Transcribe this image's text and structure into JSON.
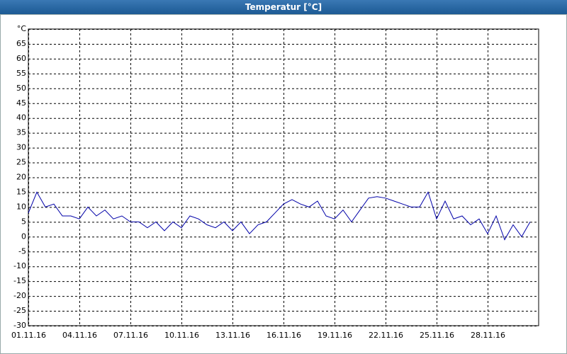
{
  "chart_data": {
    "type": "line",
    "title": "Temperatur [°C]",
    "x": [
      "2016-11-01T00:00",
      "2016-11-01T12:00",
      "2016-11-02T00:00",
      "2016-11-02T12:00",
      "2016-11-03T00:00",
      "2016-11-03T12:00",
      "2016-11-04T00:00",
      "2016-11-04T12:00",
      "2016-11-05T00:00",
      "2016-11-05T12:00",
      "2016-11-06T00:00",
      "2016-11-06T12:00",
      "2016-11-07T00:00",
      "2016-11-07T12:00",
      "2016-11-08T00:00",
      "2016-11-08T12:00",
      "2016-11-09T00:00",
      "2016-11-09T12:00",
      "2016-11-10T00:00",
      "2016-11-10T12:00",
      "2016-11-11T00:00",
      "2016-11-11T12:00",
      "2016-11-12T00:00",
      "2016-11-12T12:00",
      "2016-11-13T00:00",
      "2016-11-13T12:00",
      "2016-11-14T00:00",
      "2016-11-14T12:00",
      "2016-11-15T00:00",
      "2016-11-15T12:00",
      "2016-11-16T00:00",
      "2016-11-16T12:00",
      "2016-11-17T00:00",
      "2016-11-17T12:00",
      "2016-11-18T00:00",
      "2016-11-18T12:00",
      "2016-11-19T00:00",
      "2016-11-19T12:00",
      "2016-11-20T00:00",
      "2016-11-20T12:00",
      "2016-11-21T00:00",
      "2016-11-21T12:00",
      "2016-11-22T00:00",
      "2016-11-22T12:00",
      "2016-11-23T00:00",
      "2016-11-23T12:00",
      "2016-11-24T00:00",
      "2016-11-24T12:00",
      "2016-11-25T00:00",
      "2016-11-25T12:00",
      "2016-11-26T00:00",
      "2016-11-26T12:00",
      "2016-11-27T00:00",
      "2016-11-27T12:00",
      "2016-11-28T00:00",
      "2016-11-28T12:00",
      "2016-11-29T00:00",
      "2016-11-29T12:00",
      "2016-11-30T00:00",
      "2016-11-30T12:00"
    ],
    "series": [
      {
        "color": "#0000a8",
        "values": [
          8,
          15,
          10,
          11,
          7,
          7,
          6,
          10,
          7,
          9,
          6,
          7,
          5,
          5,
          3,
          5,
          2,
          5,
          3,
          7,
          6,
          4,
          3,
          5,
          2,
          5,
          1,
          4,
          5,
          8,
          11,
          12.5,
          11,
          10,
          12,
          7,
          6,
          9,
          5,
          9,
          13,
          13.5,
          13,
          12,
          11,
          10,
          10,
          15,
          6,
          12,
          6,
          7,
          4,
          6,
          1,
          7,
          -1,
          4,
          0,
          5
        ]
      }
    ],
    "xlim": [
      "2016-11-01",
      "2016-12-01"
    ],
    "xticks": [
      {
        "value": "2016-11-01",
        "label": "01.11.16"
      },
      {
        "value": "2016-11-04",
        "label": "04.11.16"
      },
      {
        "value": "2016-11-07",
        "label": "07.11.16"
      },
      {
        "value": "2016-11-10",
        "label": "10.11.16"
      },
      {
        "value": "2016-11-13",
        "label": "13.11.16"
      },
      {
        "value": "2016-11-16",
        "label": "16.11.16"
      },
      {
        "value": "2016-11-19",
        "label": "19.11.16"
      },
      {
        "value": "2016-11-22",
        "label": "22.11.16"
      },
      {
        "value": "2016-11-25",
        "label": "25.11.16"
      },
      {
        "value": "2016-11-28",
        "label": "28.11.16"
      }
    ],
    "ylim": [
      -30,
      70
    ],
    "yticks": [
      -30,
      -25,
      -20,
      -15,
      -10,
      -5,
      0,
      5,
      10,
      15,
      20,
      25,
      30,
      35,
      40,
      45,
      50,
      55,
      60,
      65,
      {
        "value": 70,
        "label": "°C"
      }
    ],
    "grid": true
  }
}
